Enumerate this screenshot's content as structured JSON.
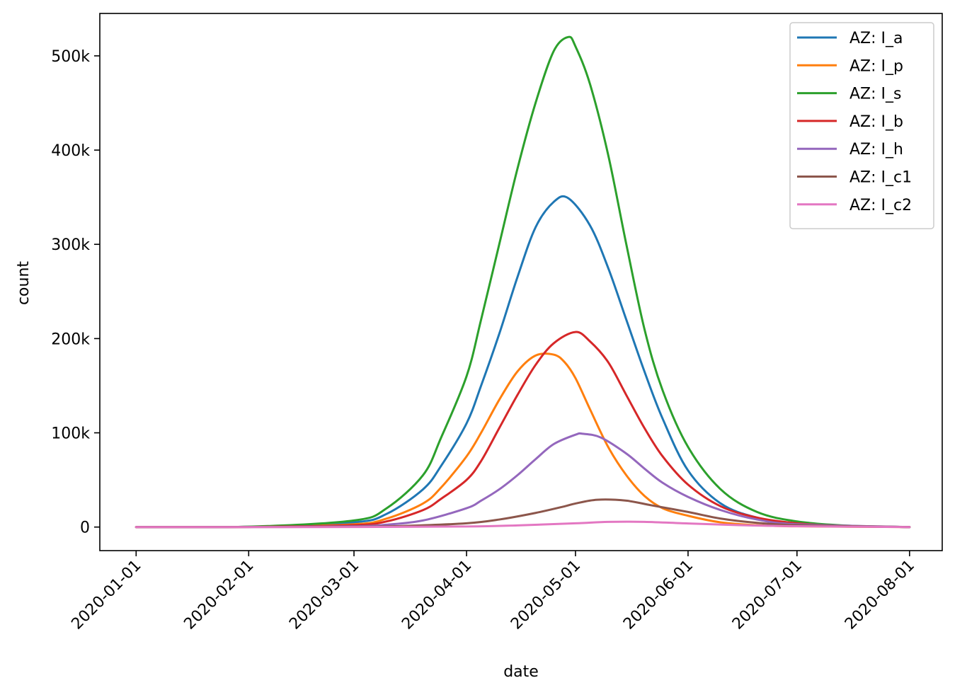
{
  "chart_data": {
    "type": "line",
    "title": "",
    "xlabel": "date",
    "ylabel": "count",
    "x_ticks": [
      "2020-01-01",
      "2020-02-01",
      "2020-03-01",
      "2020-04-01",
      "2020-05-01",
      "2020-06-01",
      "2020-07-01",
      "2020-08-01"
    ],
    "y_ticks": [
      {
        "value": 0,
        "label": "0"
      },
      {
        "value": 100000,
        "label": "100k"
      },
      {
        "value": 200000,
        "label": "200k"
      },
      {
        "value": 300000,
        "label": "300k"
      },
      {
        "value": 400000,
        "label": "400k"
      },
      {
        "value": 500000,
        "label": "500k"
      }
    ],
    "xlim": [
      "2019-12-22",
      "2020-08-10"
    ],
    "ylim": [
      -25000,
      545000
    ],
    "grid": false,
    "legend_position": "top-right",
    "series": [
      {
        "name": "AZ: I_a",
        "color": "#1f77b4",
        "x": [
          "2020-01-01",
          "2020-02-01",
          "2020-03-01",
          "2020-03-10",
          "2020-03-20",
          "2020-03-25",
          "2020-04-01",
          "2020-04-05",
          "2020-04-10",
          "2020-04-15",
          "2020-04-20",
          "2020-04-25",
          "2020-04-29",
          "2020-05-05",
          "2020-05-10",
          "2020-05-15",
          "2020-05-20",
          "2020-05-25",
          "2020-06-01",
          "2020-06-10",
          "2020-06-20",
          "2020-07-01",
          "2020-07-15",
          "2020-08-01"
        ],
        "y": [
          0,
          300,
          5000,
          14000,
          40000,
          65000,
          110000,
          150000,
          205000,
          265000,
          318000,
          345000,
          349000,
          320000,
          275000,
          220000,
          165000,
          115000,
          60000,
          25000,
          10000,
          4000,
          1000,
          0
        ]
      },
      {
        "name": "AZ: I_p",
        "color": "#ff7f0e",
        "x": [
          "2020-01-01",
          "2020-02-01",
          "2020-03-01",
          "2020-03-10",
          "2020-03-20",
          "2020-03-25",
          "2020-04-01",
          "2020-04-05",
          "2020-04-10",
          "2020-04-15",
          "2020-04-20",
          "2020-04-25",
          "2020-04-28",
          "2020-05-01",
          "2020-05-05",
          "2020-05-10",
          "2020-05-15",
          "2020-05-20",
          "2020-05-25",
          "2020-06-01",
          "2020-06-10",
          "2020-06-20",
          "2020-07-01",
          "2020-08-01"
        ],
        "y": [
          0,
          200,
          3000,
          9000,
          25000,
          42000,
          75000,
          100000,
          135000,
          165000,
          182000,
          183000,
          175000,
          158000,
          125000,
          85000,
          55000,
          33000,
          20000,
          12000,
          5000,
          2000,
          800,
          0
        ]
      },
      {
        "name": "AZ: I_s",
        "color": "#2ca02c",
        "x": [
          "2020-01-01",
          "2020-02-01",
          "2020-03-01",
          "2020-03-10",
          "2020-03-20",
          "2020-03-25",
          "2020-04-01",
          "2020-04-05",
          "2020-04-10",
          "2020-04-15",
          "2020-04-20",
          "2020-04-25",
          "2020-04-29",
          "2020-05-01",
          "2020-05-05",
          "2020-05-10",
          "2020-05-15",
          "2020-05-20",
          "2020-05-25",
          "2020-06-01",
          "2020-06-10",
          "2020-06-20",
          "2020-07-01",
          "2020-07-15",
          "2020-08-01"
        ],
        "y": [
          0,
          400,
          7000,
          20000,
          55000,
          95000,
          160000,
          220000,
          300000,
          380000,
          450000,
          505000,
          520000,
          510000,
          470000,
          395000,
          300000,
          210000,
          145000,
          85000,
          40000,
          16000,
          6000,
          1500,
          0
        ]
      },
      {
        "name": "AZ: I_b",
        "color": "#d62728",
        "x": [
          "2020-01-01",
          "2020-02-01",
          "2020-03-01",
          "2020-03-10",
          "2020-03-20",
          "2020-03-25",
          "2020-04-01",
          "2020-04-05",
          "2020-04-10",
          "2020-04-15",
          "2020-04-20",
          "2020-04-25",
          "2020-05-01",
          "2020-05-05",
          "2020-05-10",
          "2020-05-15",
          "2020-05-20",
          "2020-05-25",
          "2020-06-01",
          "2020-06-10",
          "2020-06-20",
          "2020-07-01",
          "2020-07-15",
          "2020-08-01"
        ],
        "y": [
          0,
          100,
          2000,
          6000,
          18000,
          30000,
          50000,
          70000,
          105000,
          140000,
          172000,
          195000,
          207000,
          197000,
          175000,
          140000,
          105000,
          75000,
          45000,
          22000,
          10000,
          4000,
          1000,
          0
        ]
      },
      {
        "name": "AZ: I_h",
        "color": "#9467bd",
        "x": [
          "2020-01-01",
          "2020-02-01",
          "2020-03-01",
          "2020-03-10",
          "2020-03-20",
          "2020-04-01",
          "2020-04-05",
          "2020-04-10",
          "2020-04-15",
          "2020-04-20",
          "2020-04-25",
          "2020-05-01",
          "2020-05-03",
          "2020-05-08",
          "2020-05-15",
          "2020-05-20",
          "2020-05-25",
          "2020-06-01",
          "2020-06-10",
          "2020-06-20",
          "2020-07-01",
          "2020-08-01"
        ],
        "y": [
          0,
          50,
          800,
          2500,
          7000,
          20000,
          28000,
          40000,
          55000,
          72000,
          88000,
          98000,
          99000,
          95000,
          78000,
          62000,
          47000,
          32000,
          18000,
          8000,
          3000,
          0
        ]
      },
      {
        "name": "AZ: I_c1",
        "color": "#8c564b",
        "x": [
          "2020-01-01",
          "2020-02-01",
          "2020-03-01",
          "2020-03-15",
          "2020-04-01",
          "2020-04-10",
          "2020-04-20",
          "2020-04-28",
          "2020-05-01",
          "2020-05-07",
          "2020-05-15",
          "2020-05-22",
          "2020-06-01",
          "2020-06-10",
          "2020-06-20",
          "2020-07-01",
          "2020-08-01"
        ],
        "y": [
          0,
          20,
          300,
          1200,
          4000,
          8000,
          15000,
          22000,
          25000,
          29000,
          28000,
          23000,
          16000,
          9000,
          4500,
          2000,
          0
        ]
      },
      {
        "name": "AZ: I_c2",
        "color": "#e377c2",
        "x": [
          "2020-01-01",
          "2020-02-01",
          "2020-03-01",
          "2020-04-01",
          "2020-04-15",
          "2020-05-01",
          "2020-05-10",
          "2020-05-20",
          "2020-06-01",
          "2020-06-15",
          "2020-07-01",
          "2020-08-01"
        ],
        "y": [
          0,
          5,
          80,
          600,
          1800,
          4000,
          5500,
          5500,
          3800,
          2000,
          900,
          0
        ]
      }
    ]
  }
}
